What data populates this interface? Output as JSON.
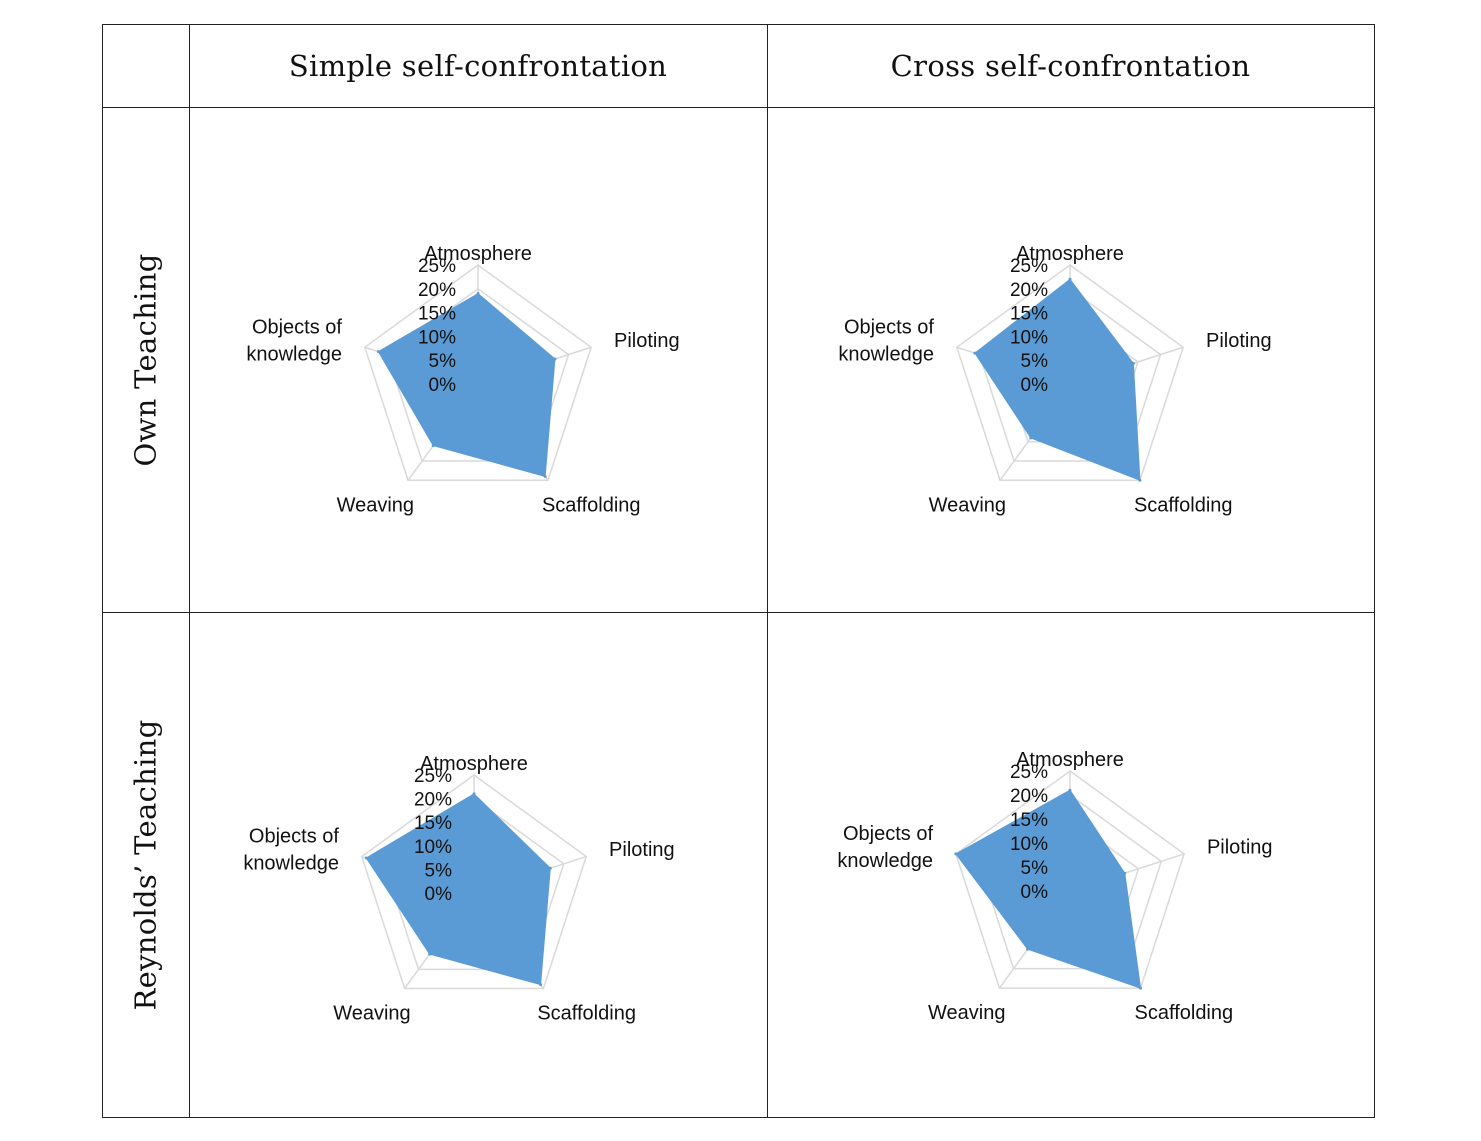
{
  "columns": [
    "Simple self-confrontation",
    "Cross self-confrontation"
  ],
  "rows": [
    "Own Teaching",
    "Reynolds’ Teaching"
  ],
  "colors": {
    "fill": "#5b9bd5",
    "grid": "#d9d9d9",
    "border": "#222222"
  },
  "chart_data": [
    {
      "type": "radar",
      "row": "Own Teaching",
      "column": "Simple self-confrontation",
      "categories": [
        "Atmosphere",
        "Piloting",
        "Scaffolding",
        "Weaving",
        "Objects of knowledge"
      ],
      "values": [
        0.19,
        0.17,
        0.24,
        0.16,
        0.22
      ],
      "tick_labels": [
        "25%",
        "20%",
        "15%",
        "10%",
        "5%",
        "0%"
      ],
      "ylim": [
        0,
        0.25
      ]
    },
    {
      "type": "radar",
      "row": "Own Teaching",
      "column": "Cross self-confrontation",
      "categories": [
        "Atmosphere",
        "Piloting",
        "Scaffolding",
        "Weaving",
        "Objects of knowledge"
      ],
      "values": [
        0.22,
        0.14,
        0.25,
        0.14,
        0.21
      ],
      "tick_labels": [
        "25%",
        "20%",
        "15%",
        "10%",
        "5%",
        "0%"
      ],
      "ylim": [
        0,
        0.25
      ]
    },
    {
      "type": "radar",
      "row": "Reynolds’ Teaching",
      "column": "Simple self-confrontation",
      "categories": [
        "Atmosphere",
        "Piloting",
        "Scaffolding",
        "Weaving",
        "Objects of knowledge"
      ],
      "values": [
        0.21,
        0.17,
        0.24,
        0.16,
        0.24
      ],
      "tick_labels": [
        "25%",
        "20%",
        "15%",
        "10%",
        "5%",
        "0%"
      ],
      "ylim": [
        0,
        0.25
      ]
    },
    {
      "type": "radar",
      "row": "Reynolds’ Teaching",
      "column": "Cross self-confrontation",
      "categories": [
        "Atmosphere",
        "Piloting",
        "Scaffolding",
        "Weaving",
        "Objects of knowledge"
      ],
      "values": [
        0.21,
        0.12,
        0.25,
        0.15,
        0.25
      ],
      "tick_labels": [
        "25%",
        "20%",
        "15%",
        "10%",
        "5%",
        "0%"
      ],
      "ylim": [
        0,
        0.25
      ]
    }
  ]
}
